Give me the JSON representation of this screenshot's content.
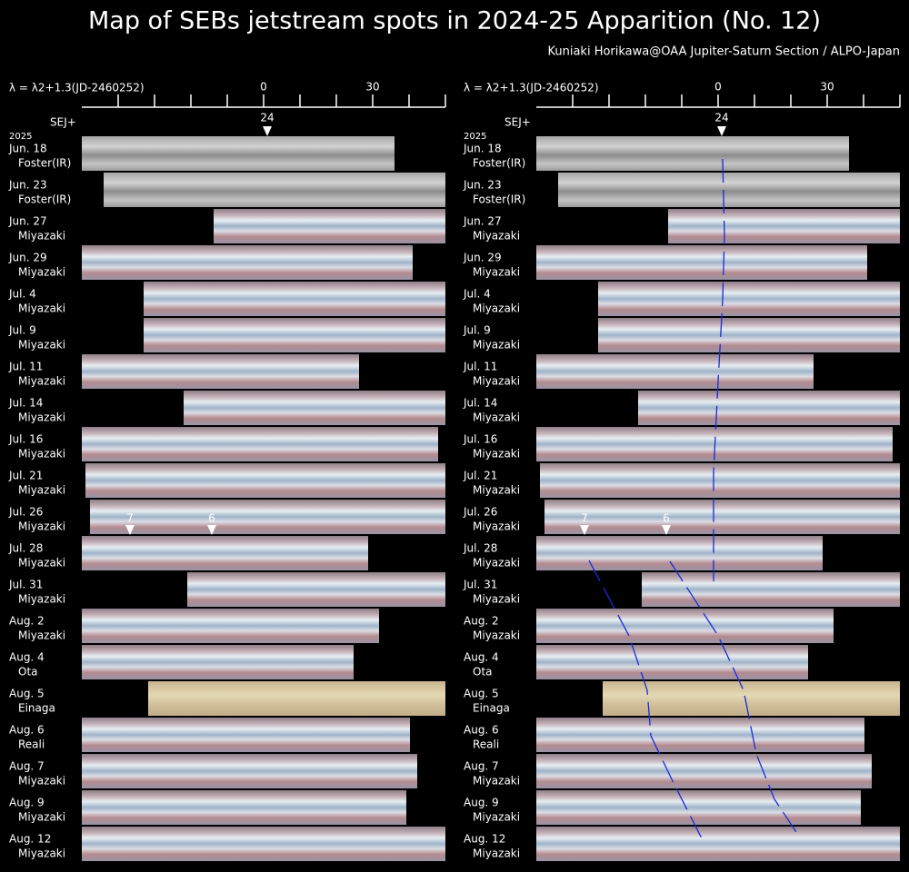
{
  "header": {
    "title": "Map of SEBs jetstream spots in 2024-25 Apparition (No. 12)",
    "credit": "Kuniaki Horikawa@OAA Jupiter-Saturn Section / ALPO-Japan"
  },
  "axis": {
    "label": "λ = λ2+1.3(JD-2460252)",
    "tick_labels": [
      "0",
      "30"
    ],
    "reference": "SEJ+",
    "reference_spot": "24"
  },
  "year": "2025",
  "rows": [
    {
      "date": "Jun. 18",
      "observer": "Foster(IR)"
    },
    {
      "date": "Jun. 23",
      "observer": "Foster(IR)"
    },
    {
      "date": "Jun. 27",
      "observer": "Miyazaki"
    },
    {
      "date": "Jun. 29",
      "observer": "Miyazaki"
    },
    {
      "date": "Jul. 4",
      "observer": "Miyazaki"
    },
    {
      "date": "Jul. 9",
      "observer": "Miyazaki"
    },
    {
      "date": "Jul. 11",
      "observer": "Miyazaki"
    },
    {
      "date": "Jul. 14",
      "observer": "Miyazaki"
    },
    {
      "date": "Jul. 16",
      "observer": "Miyazaki"
    },
    {
      "date": "Jul. 21",
      "observer": "Miyazaki"
    },
    {
      "date": "Jul. 26",
      "observer": "Miyazaki"
    },
    {
      "date": "Jul. 28",
      "observer": "Miyazaki"
    },
    {
      "date": "Jul. 31",
      "observer": "Miyazaki"
    },
    {
      "date": "Aug. 2",
      "observer": "Miyazaki"
    },
    {
      "date": "Aug. 4",
      "observer": "Ota"
    },
    {
      "date": "Aug. 5",
      "observer": "Einaga"
    },
    {
      "date": "Aug. 6",
      "observer": "Reali"
    },
    {
      "date": "Aug. 7",
      "observer": "Miyazaki"
    },
    {
      "date": "Aug. 9",
      "observer": "Miyazaki"
    },
    {
      "date": "Aug. 12",
      "observer": "Miyazaki"
    }
  ],
  "spots": [
    "7",
    "6"
  ]
}
